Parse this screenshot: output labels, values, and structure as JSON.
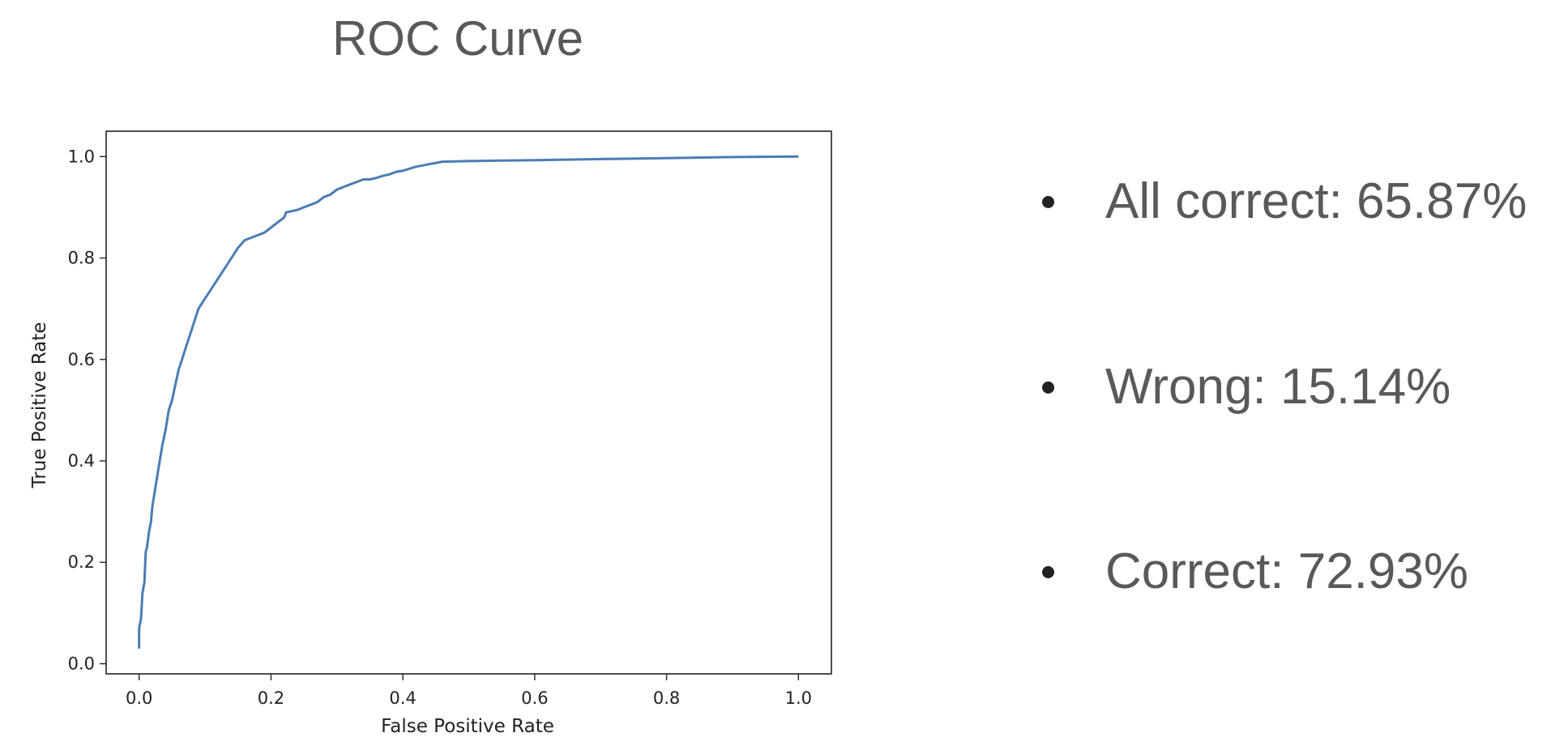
{
  "slide": {
    "title": "ROC Curve",
    "bullets": [
      {
        "text": "All correct: 65.87%"
      },
      {
        "text": "Wrong: 15.14%"
      },
      {
        "text": "Correct: 72.93%"
      }
    ]
  },
  "chart_data": {
    "type": "line",
    "title": "",
    "xlabel": "False Positive Rate",
    "ylabel": "True Positive Rate",
    "xlim": [
      -0.05,
      1.05
    ],
    "ylim": [
      -0.02,
      1.05
    ],
    "xticks": [
      0.0,
      0.2,
      0.4,
      0.6,
      0.8,
      1.0
    ],
    "xtick_labels": [
      "0.0",
      "0.2",
      "0.4",
      "0.6",
      "0.8",
      "1.0"
    ],
    "yticks": [
      0.0,
      0.2,
      0.4,
      0.6,
      0.8,
      1.0
    ],
    "ytick_labels": [
      "0.0",
      "0.2",
      "0.4",
      "0.6",
      "0.8",
      "1.0"
    ],
    "grid": false,
    "line_color": "#4a7db5",
    "series": [
      {
        "x": [
          0.0,
          0.0,
          0.003,
          0.005,
          0.008,
          0.01,
          0.012,
          0.015,
          0.018,
          0.02,
          0.025,
          0.03,
          0.035,
          0.04,
          0.045,
          0.05,
          0.055,
          0.06,
          0.065,
          0.07,
          0.075,
          0.08,
          0.09,
          0.1,
          0.11,
          0.12,
          0.13,
          0.14,
          0.15,
          0.16,
          0.17,
          0.18,
          0.19,
          0.2,
          0.21,
          0.22,
          0.223,
          0.24,
          0.25,
          0.26,
          0.27,
          0.28,
          0.29,
          0.3,
          0.31,
          0.32,
          0.33,
          0.34,
          0.35,
          0.36,
          0.37,
          0.38,
          0.39,
          0.4,
          0.42,
          0.44,
          0.46,
          0.5,
          0.6,
          0.7,
          0.8,
          0.9,
          1.0
        ],
        "y": [
          0.03,
          0.07,
          0.09,
          0.14,
          0.16,
          0.22,
          0.23,
          0.26,
          0.28,
          0.31,
          0.35,
          0.39,
          0.43,
          0.46,
          0.5,
          0.52,
          0.55,
          0.58,
          0.6,
          0.62,
          0.64,
          0.66,
          0.7,
          0.72,
          0.74,
          0.76,
          0.78,
          0.8,
          0.82,
          0.835,
          0.84,
          0.845,
          0.85,
          0.86,
          0.87,
          0.88,
          0.89,
          0.895,
          0.9,
          0.905,
          0.91,
          0.92,
          0.925,
          0.935,
          0.94,
          0.945,
          0.95,
          0.955,
          0.955,
          0.958,
          0.962,
          0.965,
          0.97,
          0.972,
          0.98,
          0.985,
          0.99,
          0.991,
          0.993,
          0.995,
          0.997,
          0.999,
          1.0
        ]
      }
    ]
  }
}
